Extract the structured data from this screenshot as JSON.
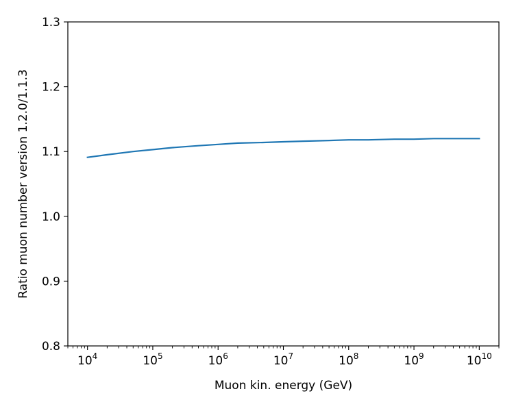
{
  "chart_data": {
    "type": "line",
    "xlabel": "Muon kin. energy (GeV)",
    "ylabel": "Ratio muon number version 1.2.0/1.1.3",
    "xscale": "log",
    "xlim": [
      5000,
      20000000000
    ],
    "ylim": [
      0.8,
      1.3
    ],
    "grid": false,
    "x_ticks": [
      {
        "value": 10000,
        "base": "10",
        "exp": "4"
      },
      {
        "value": 100000,
        "base": "10",
        "exp": "5"
      },
      {
        "value": 1000000,
        "base": "10",
        "exp": "6"
      },
      {
        "value": 10000000,
        "base": "10",
        "exp": "7"
      },
      {
        "value": 100000000,
        "base": "10",
        "exp": "8"
      },
      {
        "value": 1000000000,
        "base": "10",
        "exp": "9"
      },
      {
        "value": 10000000000,
        "base": "10",
        "exp": "10"
      }
    ],
    "y_ticks": [
      {
        "value": 0.8,
        "label": "0.8"
      },
      {
        "value": 0.9,
        "label": "0.9"
      },
      {
        "value": 1.0,
        "label": "1.0"
      },
      {
        "value": 1.1,
        "label": "1.1"
      },
      {
        "value": 1.2,
        "label": "1.2"
      },
      {
        "value": 1.3,
        "label": "1.3"
      }
    ],
    "series": [
      {
        "color": "#1f77b4",
        "x": [
          10000,
          20000,
          50000,
          100000,
          200000,
          500000,
          1000000,
          2000000,
          5000000,
          10000000,
          20000000,
          50000000,
          100000000,
          200000000,
          500000000,
          1000000000,
          2000000000,
          5000000000,
          10000000000
        ],
        "y": [
          1.091,
          1.095,
          1.1,
          1.103,
          1.106,
          1.109,
          1.111,
          1.113,
          1.114,
          1.115,
          1.116,
          1.117,
          1.118,
          1.118,
          1.119,
          1.119,
          1.12,
          1.12,
          1.12
        ]
      }
    ]
  }
}
